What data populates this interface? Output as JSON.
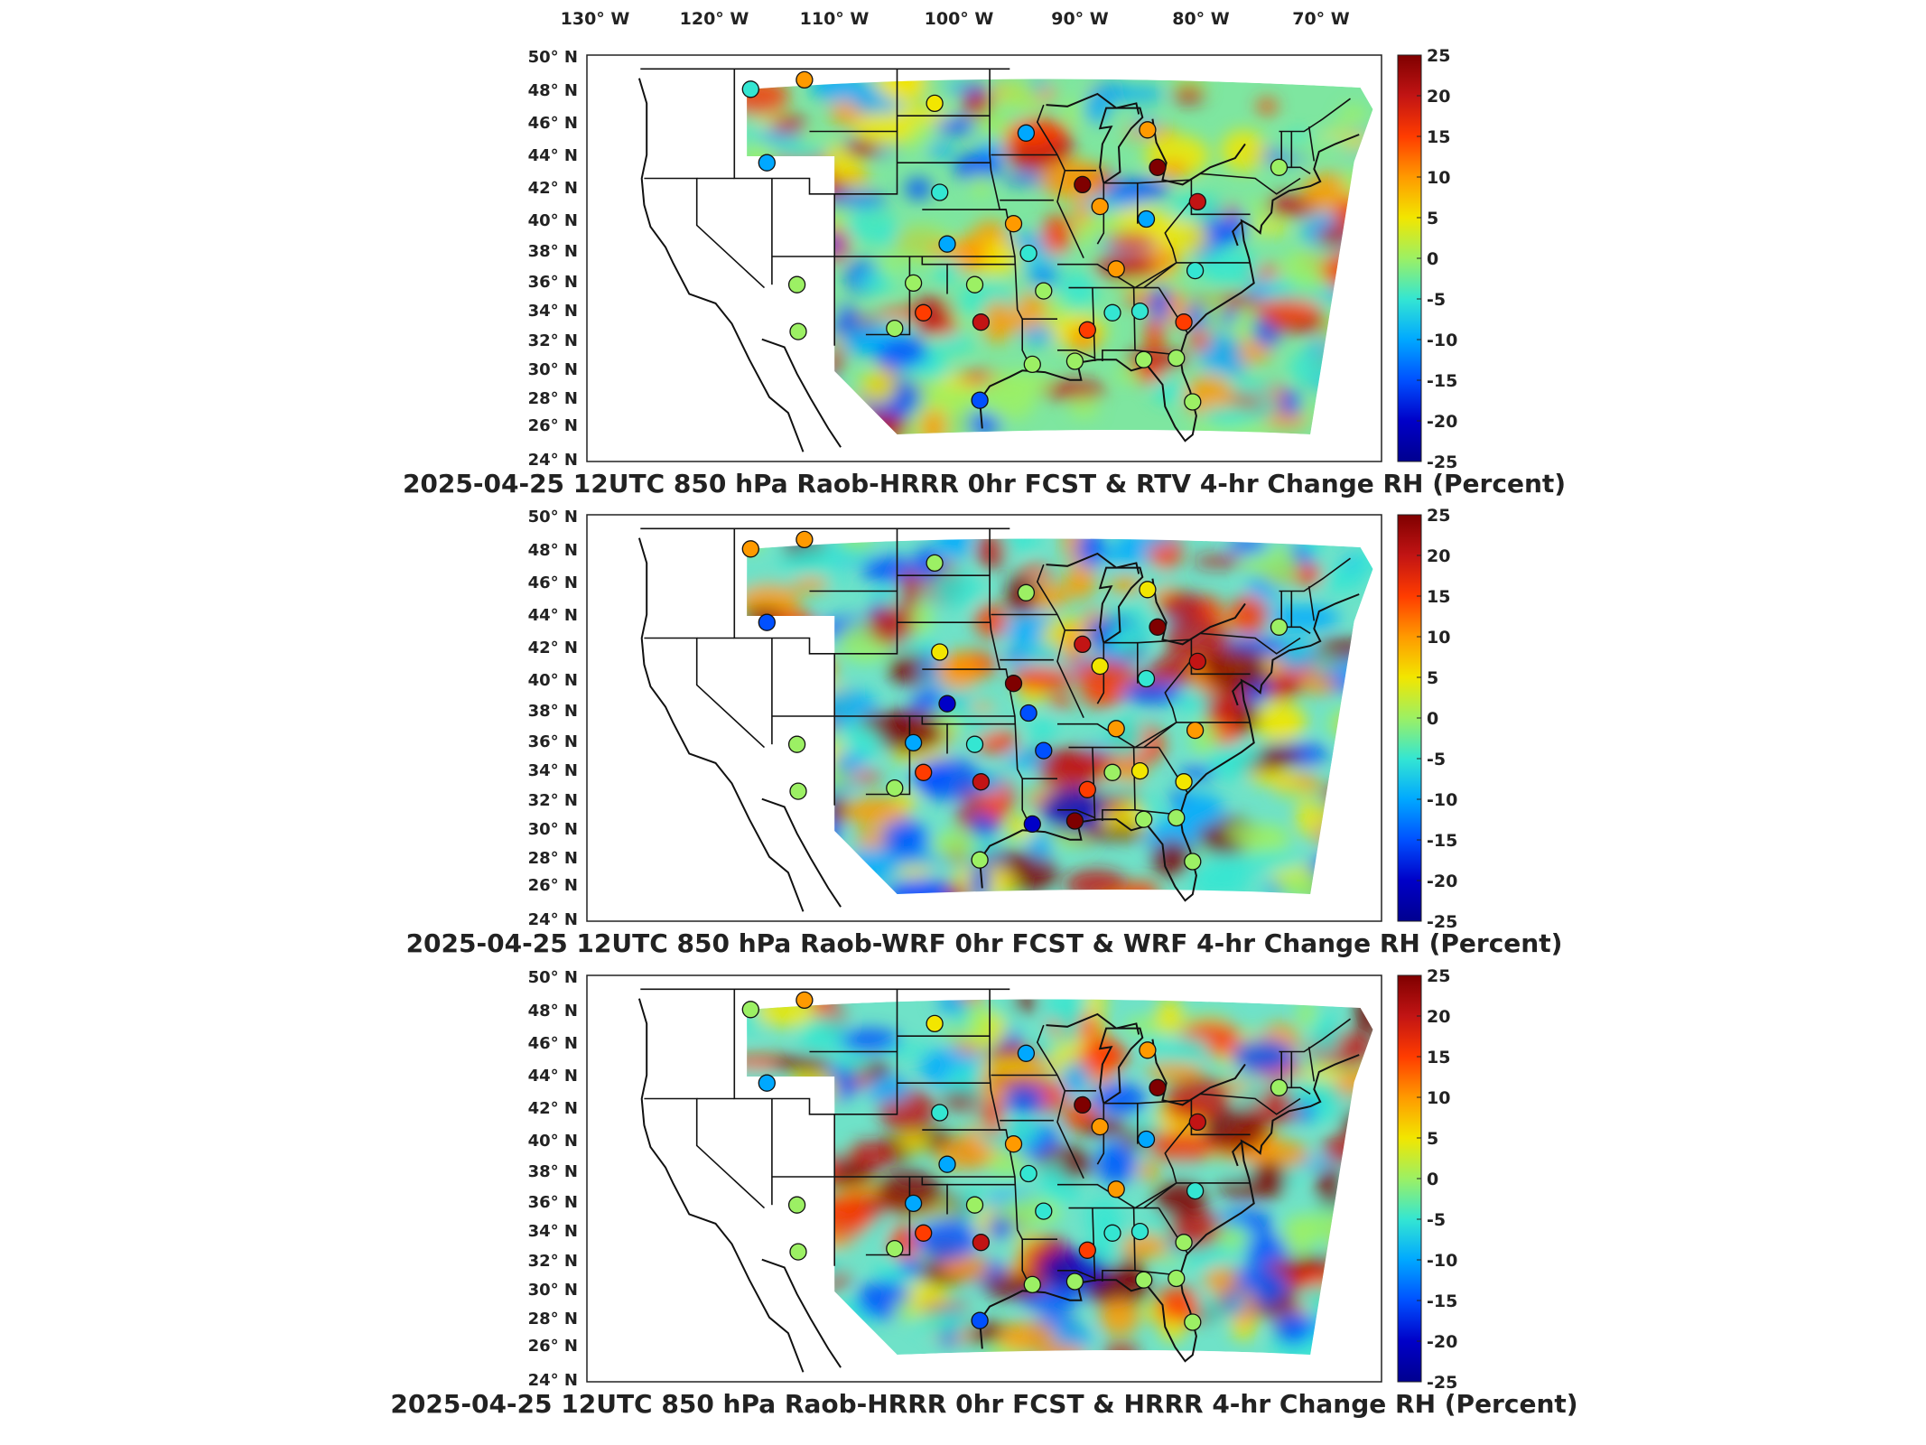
{
  "lon_labels": [
    "130° W",
    "120° W",
    "110° W",
    "100° W",
    "90° W",
    "80° W",
    "70° W"
  ],
  "lat_labels": [
    "50° N",
    "48° N",
    "46° N",
    "44° N",
    "42° N",
    "40° N",
    "38° N",
    "36° N",
    "34° N",
    "32° N",
    "30° N",
    "28° N",
    "26° N",
    "24° N"
  ],
  "colorbar": {
    "ticks": [
      "25",
      "20",
      "15",
      "10",
      "5",
      "0",
      "-5",
      "-10",
      "-15",
      "-20",
      "-25"
    ],
    "colors": [
      "#7f0000",
      "#c21414",
      "#ff3c00",
      "#ff9a00",
      "#f2e600",
      "#9cf064",
      "#34e6d2",
      "#00a8ff",
      "#0050ff",
      "#0000c8",
      "#00008f"
    ]
  },
  "panels": [
    {
      "title": "2025-04-25 12UTC 850 hPa Raob-HRRR 0hr FCST & RTV 4-hr Change RH (Percent)",
      "stations": [
        {
          "lon": -115.7,
          "lat": 47.7,
          "value": -7
        },
        {
          "lon": -111.4,
          "lat": 48.3,
          "value": 11
        },
        {
          "lon": -101.0,
          "lat": 46.8,
          "value": 4
        },
        {
          "lon": -114.4,
          "lat": 43.0,
          "value": -12
        },
        {
          "lon": -93.7,
          "lat": 44.9,
          "value": -10
        },
        {
          "lon": -84.0,
          "lat": 45.1,
          "value": 12
        },
        {
          "lon": -100.6,
          "lat": 41.1,
          "value": -7
        },
        {
          "lon": -89.2,
          "lat": 41.6,
          "value": 23
        },
        {
          "lon": -83.2,
          "lat": 42.7,
          "value": 24
        },
        {
          "lon": -87.8,
          "lat": 40.2,
          "value": 12
        },
        {
          "lon": -94.7,
          "lat": 39.1,
          "value": 12
        },
        {
          "lon": -84.1,
          "lat": 39.4,
          "value": -8
        },
        {
          "lon": -80.0,
          "lat": 40.5,
          "value": 22
        },
        {
          "lon": -73.5,
          "lat": 42.7,
          "value": 2
        },
        {
          "lon": -100.0,
          "lat": 37.8,
          "value": -12
        },
        {
          "lon": -93.5,
          "lat": 37.2,
          "value": -6
        },
        {
          "lon": -86.5,
          "lat": 36.2,
          "value": 11
        },
        {
          "lon": -80.2,
          "lat": 36.1,
          "value": -6
        },
        {
          "lon": -112.0,
          "lat": 35.2,
          "value": 0
        },
        {
          "lon": -102.7,
          "lat": 35.3,
          "value": 2
        },
        {
          "lon": -97.8,
          "lat": 35.2,
          "value": 2
        },
        {
          "lon": -92.3,
          "lat": 34.8,
          "value": 2
        },
        {
          "lon": -97.3,
          "lat": 32.8,
          "value": 18
        },
        {
          "lon": -101.9,
          "lat": 33.4,
          "value": 14
        },
        {
          "lon": -88.8,
          "lat": 32.3,
          "value": 14
        },
        {
          "lon": -86.8,
          "lat": 33.4,
          "value": -5
        },
        {
          "lon": -84.6,
          "lat": 33.5,
          "value": -5
        },
        {
          "lon": -81.1,
          "lat": 32.8,
          "value": 13
        },
        {
          "lon": -111.9,
          "lat": 32.2,
          "value": 2
        },
        {
          "lon": -104.2,
          "lat": 32.4,
          "value": 0
        },
        {
          "lon": -97.4,
          "lat": 27.8,
          "value": -14
        },
        {
          "lon": -93.2,
          "lat": 30.1,
          "value": -2
        },
        {
          "lon": -84.3,
          "lat": 30.4,
          "value": 0
        },
        {
          "lon": -81.7,
          "lat": 30.5,
          "value": -2
        },
        {
          "lon": -80.4,
          "lat": 27.7,
          "value": 0
        },
        {
          "lon": -89.8,
          "lat": 30.3,
          "value": 2
        }
      ]
    },
    {
      "title": "2025-04-25 12UTC 850 hPa Raob-WRF 0hr FCST & WRF 4-hr Change RH (Percent)",
      "stations": [
        {
          "lon": -115.7,
          "lat": 47.7,
          "value": 9
        },
        {
          "lon": -111.4,
          "lat": 48.3,
          "value": 8
        },
        {
          "lon": -101.0,
          "lat": 46.8,
          "value": -1
        },
        {
          "lon": -114.4,
          "lat": 43.0,
          "value": -15
        },
        {
          "lon": -93.7,
          "lat": 44.9,
          "value": 2
        },
        {
          "lon": -84.0,
          "lat": 45.1,
          "value": 6
        },
        {
          "lon": -100.6,
          "lat": 41.1,
          "value": 3
        },
        {
          "lon": -89.2,
          "lat": 41.6,
          "value": 22
        },
        {
          "lon": -83.2,
          "lat": 42.7,
          "value": 24
        },
        {
          "lon": -87.8,
          "lat": 40.2,
          "value": 6
        },
        {
          "lon": -94.7,
          "lat": 39.1,
          "value": 24
        },
        {
          "lon": -84.1,
          "lat": 39.4,
          "value": -7
        },
        {
          "lon": -80.0,
          "lat": 40.5,
          "value": 22
        },
        {
          "lon": -73.5,
          "lat": 42.7,
          "value": 2
        },
        {
          "lon": -100.0,
          "lat": 37.8,
          "value": -18
        },
        {
          "lon": -93.5,
          "lat": 37.2,
          "value": -14
        },
        {
          "lon": -86.5,
          "lat": 36.2,
          "value": 10
        },
        {
          "lon": -80.2,
          "lat": 36.1,
          "value": 9
        },
        {
          "lon": -112.0,
          "lat": 35.2,
          "value": 0
        },
        {
          "lon": -102.7,
          "lat": 35.3,
          "value": -8
        },
        {
          "lon": -97.8,
          "lat": 35.2,
          "value": -5
        },
        {
          "lon": -92.3,
          "lat": 34.8,
          "value": -14
        },
        {
          "lon": -97.3,
          "lat": 32.8,
          "value": 18
        },
        {
          "lon": -101.9,
          "lat": 33.4,
          "value": 14
        },
        {
          "lon": -88.8,
          "lat": 32.3,
          "value": 14
        },
        {
          "lon": -86.8,
          "lat": 33.4,
          "value": 0
        },
        {
          "lon": -84.6,
          "lat": 33.5,
          "value": 6
        },
        {
          "lon": -81.1,
          "lat": 32.8,
          "value": 5
        },
        {
          "lon": -111.9,
          "lat": 32.2,
          "value": 2
        },
        {
          "lon": -104.2,
          "lat": 32.4,
          "value": 0
        },
        {
          "lon": -97.4,
          "lat": 27.8,
          "value": 0
        },
        {
          "lon": -93.2,
          "lat": 30.1,
          "value": -20
        },
        {
          "lon": -84.3,
          "lat": 30.4,
          "value": 0
        },
        {
          "lon": -81.7,
          "lat": 30.5,
          "value": 0
        },
        {
          "lon": -80.4,
          "lat": 27.7,
          "value": 0
        },
        {
          "lon": -89.8,
          "lat": 30.3,
          "value": 24
        }
      ]
    },
    {
      "title": "2025-04-25 12UTC 850 hPa Raob-HRRR 0hr FCST & HRRR 4-hr Change RH (Percent)",
      "stations": [
        {
          "lon": -115.7,
          "lat": 47.7,
          "value": -2
        },
        {
          "lon": -111.4,
          "lat": 48.3,
          "value": 12
        },
        {
          "lon": -101.0,
          "lat": 46.8,
          "value": 3
        },
        {
          "lon": -114.4,
          "lat": 43.0,
          "value": -12
        },
        {
          "lon": -93.7,
          "lat": 44.9,
          "value": -8
        },
        {
          "lon": -84.0,
          "lat": 45.1,
          "value": 12
        },
        {
          "lon": -100.6,
          "lat": 41.1,
          "value": -6
        },
        {
          "lon": -89.2,
          "lat": 41.6,
          "value": 23
        },
        {
          "lon": -83.2,
          "lat": 42.7,
          "value": 24
        },
        {
          "lon": -87.8,
          "lat": 40.2,
          "value": 12
        },
        {
          "lon": -94.7,
          "lat": 39.1,
          "value": 10
        },
        {
          "lon": -84.1,
          "lat": 39.4,
          "value": -8
        },
        {
          "lon": -80.0,
          "lat": 40.5,
          "value": 22
        },
        {
          "lon": -73.5,
          "lat": 42.7,
          "value": 2
        },
        {
          "lon": -100.0,
          "lat": 37.8,
          "value": -12
        },
        {
          "lon": -93.5,
          "lat": 37.2,
          "value": -6
        },
        {
          "lon": -86.5,
          "lat": 36.2,
          "value": 12
        },
        {
          "lon": -80.2,
          "lat": 36.1,
          "value": -5
        },
        {
          "lon": -112.0,
          "lat": 35.2,
          "value": 2
        },
        {
          "lon": -102.7,
          "lat": 35.3,
          "value": -10
        },
        {
          "lon": -97.8,
          "lat": 35.2,
          "value": 2
        },
        {
          "lon": -92.3,
          "lat": 34.8,
          "value": -4
        },
        {
          "lon": -97.3,
          "lat": 32.8,
          "value": 18
        },
        {
          "lon": -101.9,
          "lat": 33.4,
          "value": 14
        },
        {
          "lon": -88.8,
          "lat": 32.3,
          "value": 14
        },
        {
          "lon": -86.8,
          "lat": 33.4,
          "value": -5
        },
        {
          "lon": -84.6,
          "lat": 33.5,
          "value": -4
        },
        {
          "lon": -81.1,
          "lat": 32.8,
          "value": 2
        },
        {
          "lon": -111.9,
          "lat": 32.2,
          "value": 0
        },
        {
          "lon": -104.2,
          "lat": 32.4,
          "value": 0
        },
        {
          "lon": -97.4,
          "lat": 27.8,
          "value": -16
        },
        {
          "lon": -93.2,
          "lat": 30.1,
          "value": -2
        },
        {
          "lon": -84.3,
          "lat": 30.4,
          "value": 0
        },
        {
          "lon": -81.7,
          "lat": 30.5,
          "value": -2
        },
        {
          "lon": -80.4,
          "lat": 27.7,
          "value": 0
        },
        {
          "lon": -89.8,
          "lat": 30.3,
          "value": 2
        }
      ]
    }
  ]
}
